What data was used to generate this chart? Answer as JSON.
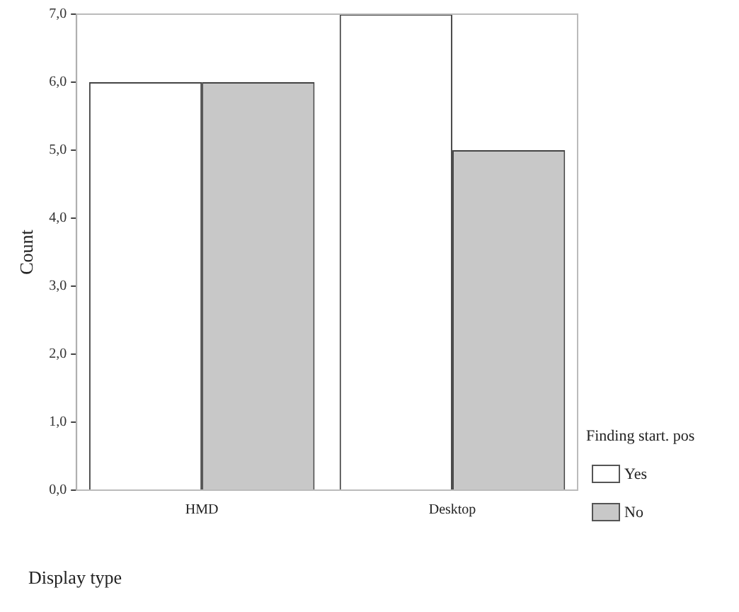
{
  "chart_data": {
    "type": "bar",
    "xlabel": "Display type",
    "ylabel": "Count",
    "legend_title": "Finding start. pos",
    "categories": [
      "HMD",
      "Desktop"
    ],
    "series": [
      {
        "name": "Yes",
        "color": "#ffffff",
        "values": [
          6,
          7
        ]
      },
      {
        "name": "No",
        "color": "#c8c8c8",
        "values": [
          6,
          5
        ]
      }
    ],
    "ylim": [
      0,
      7
    ],
    "yticks": [
      {
        "value": 0,
        "label": "0,0"
      },
      {
        "value": 1,
        "label": "1,0"
      },
      {
        "value": 2,
        "label": "2,0"
      },
      {
        "value": 3,
        "label": "3,0"
      },
      {
        "value": 4,
        "label": "4,0"
      },
      {
        "value": 5,
        "label": "5,0"
      },
      {
        "value": 6,
        "label": "6,0"
      },
      {
        "value": 7,
        "label": "7,0"
      }
    ],
    "grid": false,
    "legend": "right"
  }
}
